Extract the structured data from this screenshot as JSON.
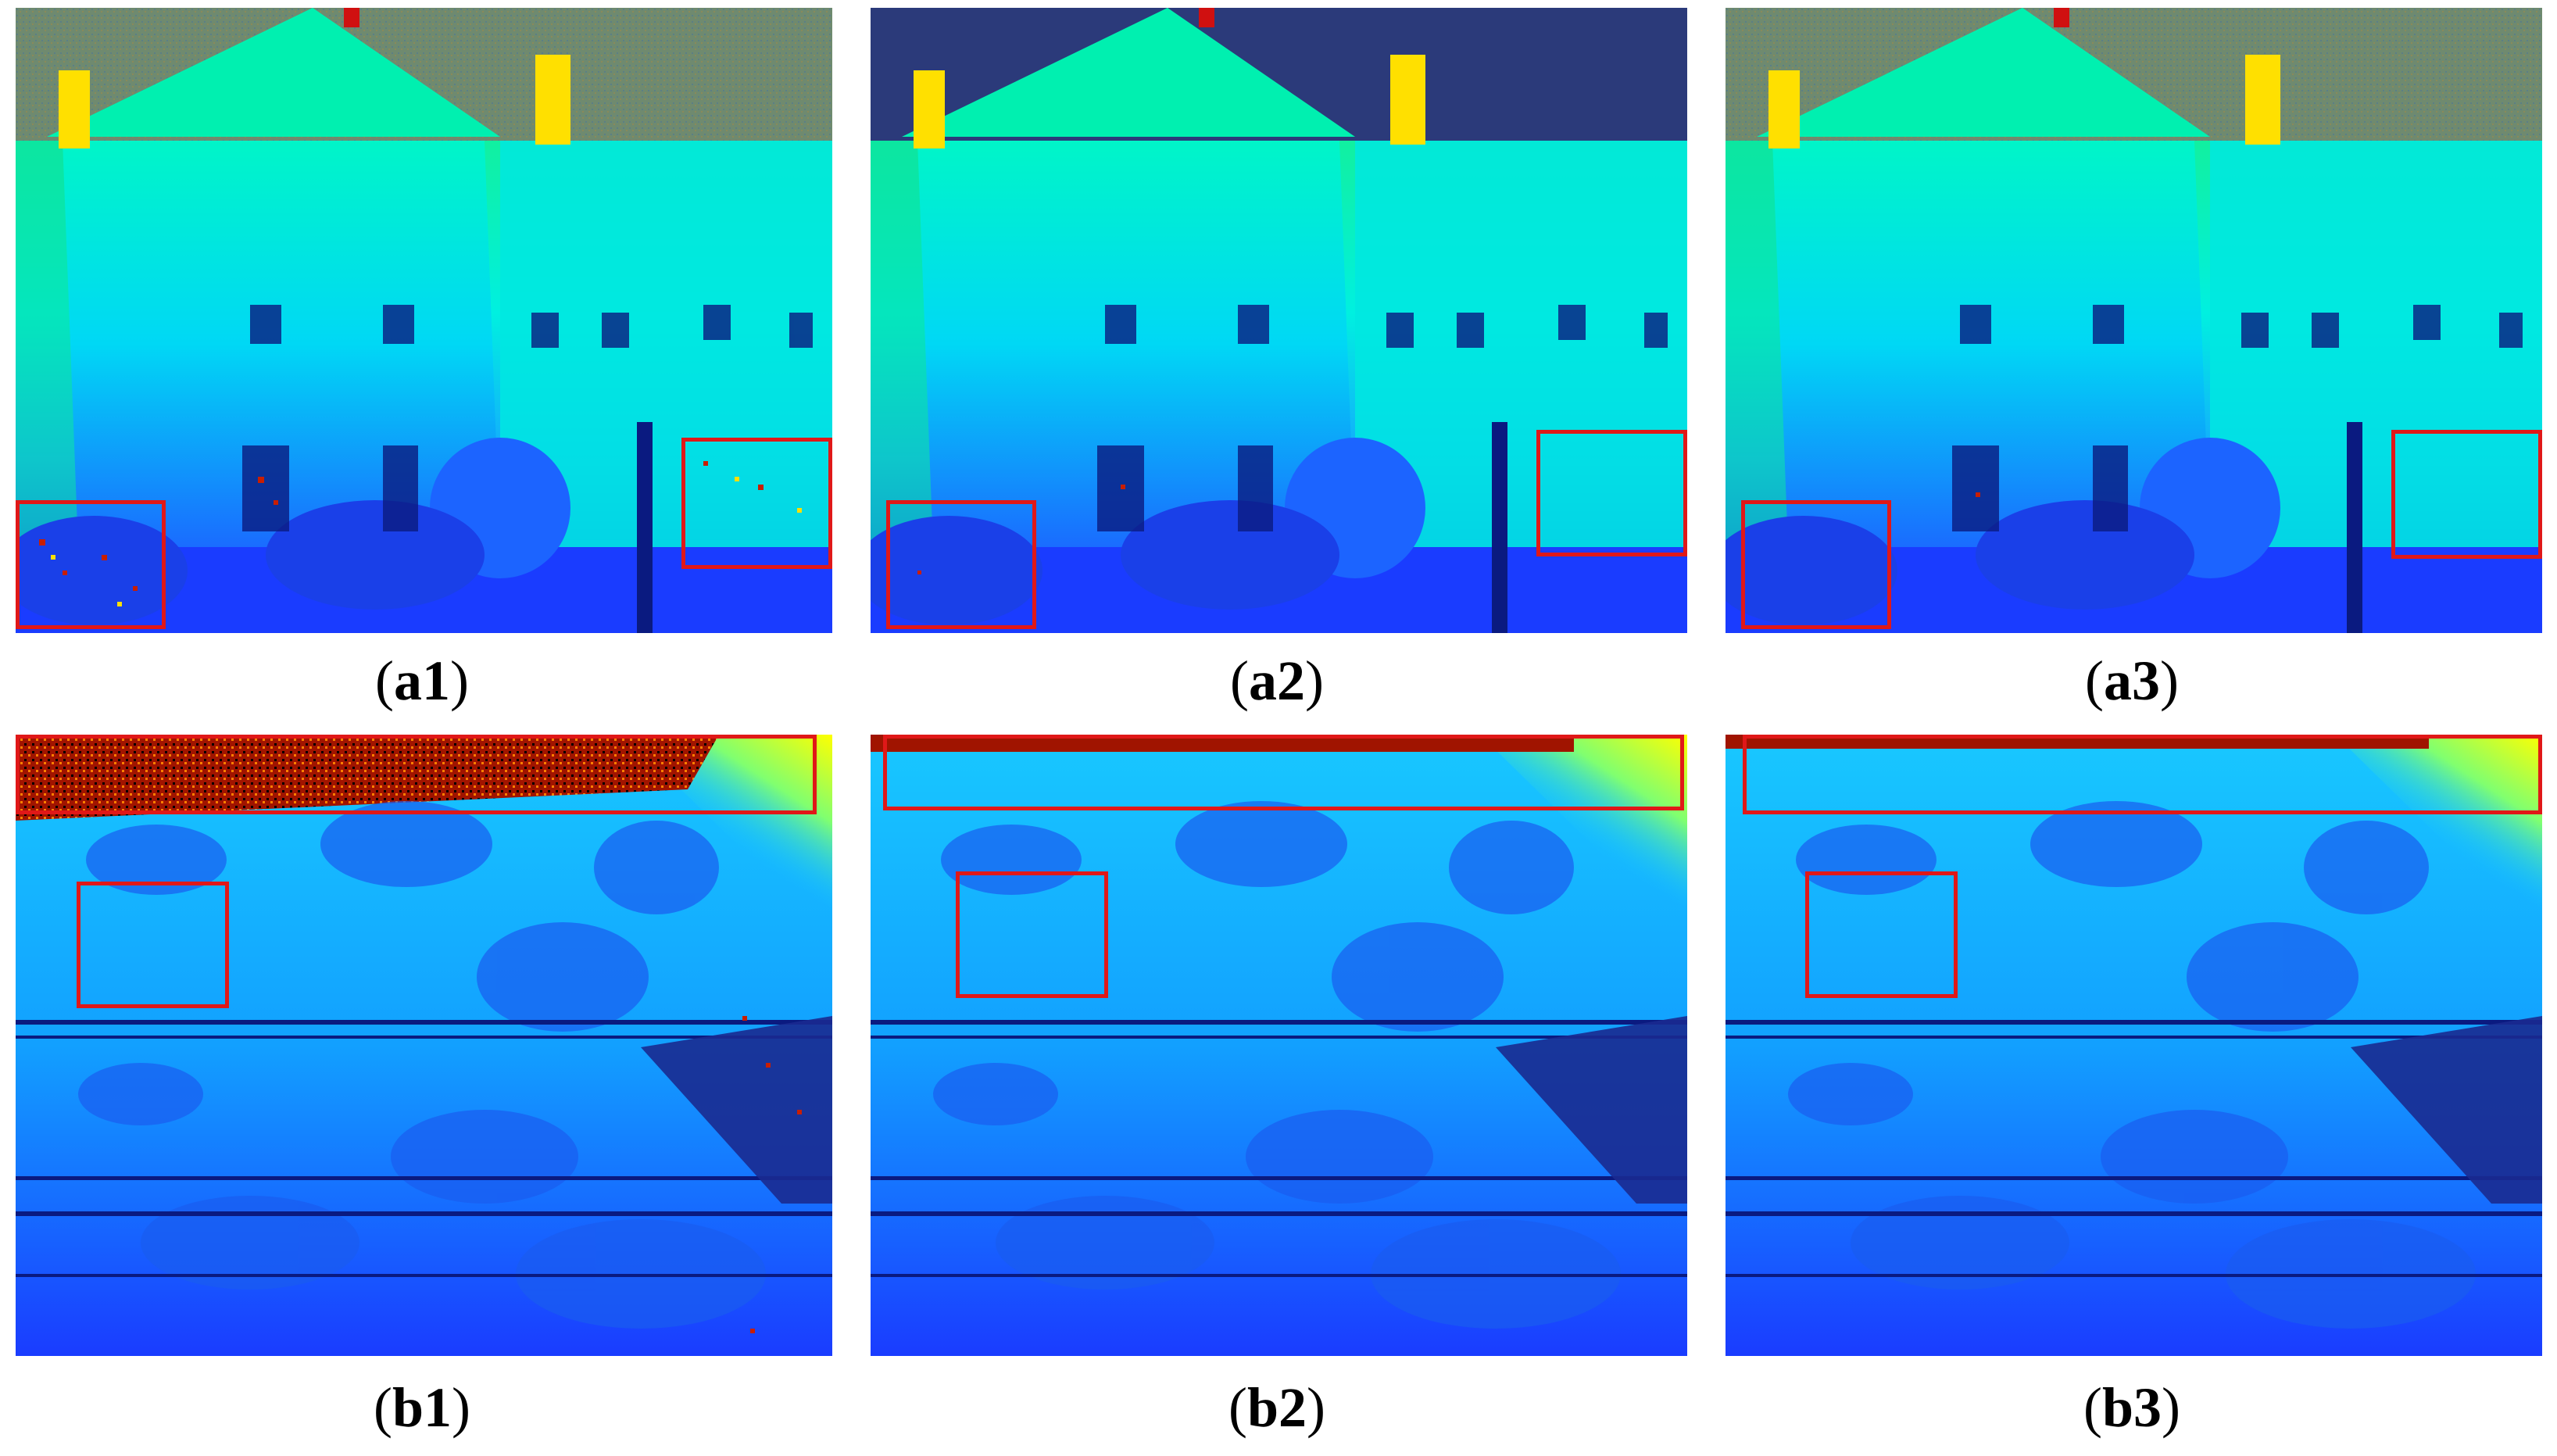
{
  "figure": {
    "rows": [
      {
        "row_id": "a",
        "scene": "building",
        "panels": [
          {
            "label": "a1",
            "caption_open": "(",
            "caption_close": ")",
            "variant": "noisy",
            "sky_color": "#6f8a6f"
          },
          {
            "label": "a2",
            "caption_open": "(",
            "caption_close": ")",
            "variant": "clean",
            "sky_color": "#2b3a7a"
          },
          {
            "label": "a3",
            "caption_open": "(",
            "caption_close": ")",
            "variant": "clean",
            "sky_color": "#6f8a6f"
          }
        ]
      },
      {
        "row_id": "b",
        "scene": "bridge",
        "panels": [
          {
            "label": "b1",
            "caption_open": "(",
            "caption_close": ")",
            "variant": "noisy"
          },
          {
            "label": "b2",
            "caption_open": "(",
            "caption_close": ")",
            "variant": "clean"
          },
          {
            "label": "b3",
            "caption_open": "(",
            "caption_close": ")",
            "variant": "clean"
          }
        ]
      }
    ],
    "colors": {
      "highlight_box": "#e01818",
      "depth_far": "#1a2cff",
      "depth_mid": "#00e5ff",
      "depth_near": "#ffff00",
      "sky_bg": "#6f8a6f",
      "noise_hot": "#c81e00"
    }
  }
}
